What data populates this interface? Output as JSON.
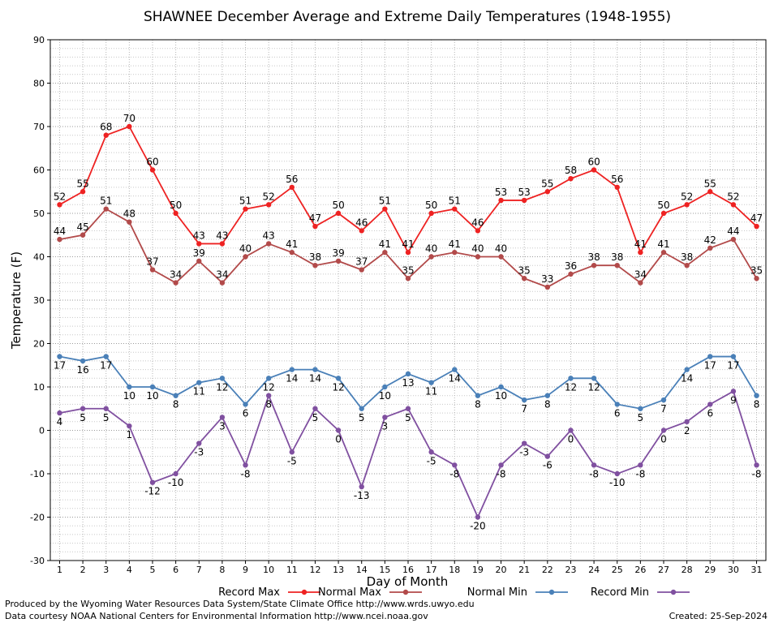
{
  "chart_data": {
    "type": "line",
    "title": "SHAWNEE December Average and Extreme Daily Temperatures (1948-1955)",
    "xlabel": "Day of Month",
    "ylabel": "Temperature (F)",
    "ylim": [
      -30,
      90
    ],
    "xlim": [
      0.6,
      31.4
    ],
    "x": [
      1,
      2,
      3,
      4,
      5,
      6,
      7,
      8,
      9,
      10,
      11,
      12,
      13,
      14,
      15,
      16,
      17,
      18,
      19,
      20,
      21,
      22,
      23,
      24,
      25,
      26,
      27,
      28,
      29,
      30,
      31
    ],
    "yticks": [
      -30,
      -20,
      -10,
      0,
      10,
      20,
      30,
      40,
      50,
      60,
      70,
      80,
      90
    ],
    "grid": true,
    "legend_position": "bottom",
    "series": [
      {
        "name": "Record Max",
        "color": "#ee2222",
        "values": [
          52,
          55,
          68,
          70,
          60,
          50,
          43,
          43,
          51,
          52,
          56,
          47,
          50,
          46,
          51,
          41,
          50,
          51,
          46,
          53,
          53,
          55,
          58,
          60,
          56,
          41,
          50,
          52,
          55,
          52,
          47
        ]
      },
      {
        "name": "Normal Max",
        "color": "#b24a4a",
        "values": [
          44,
          45,
          51,
          48,
          37,
          34,
          39,
          34,
          40,
          43,
          41,
          38,
          39,
          37,
          41,
          35,
          40,
          41,
          40,
          40,
          35,
          33,
          36,
          38,
          38,
          34,
          41,
          38,
          42,
          44,
          35
        ]
      },
      {
        "name": "Normal Min",
        "color": "#4a80b8",
        "values": [
          17,
          16,
          17,
          10,
          10,
          8,
          11,
          12,
          6,
          12,
          14,
          14,
          12,
          5,
          10,
          13,
          11,
          14,
          8,
          10,
          7,
          8,
          12,
          12,
          6,
          5,
          7,
          14,
          17,
          17,
          8
        ]
      },
      {
        "name": "Record Min",
        "color": "#8050a0",
        "values": [
          4,
          5,
          5,
          1,
          -12,
          -10,
          -3,
          3,
          -8,
          8,
          -5,
          5,
          0,
          -13,
          3,
          5,
          -5,
          -8,
          -20,
          -8,
          -3,
          -6,
          0,
          -8,
          -10,
          -8,
          0,
          2,
          6,
          9,
          -8
        ]
      }
    ]
  },
  "footer": {
    "produced_by": "Produced by the Wyoming Water Resources Data System/State Climate Office http://www.wrds.uwyo.edu",
    "data_courtesy": "Data courtesy NOAA National Centers for Environmental Information http://www.ncei.noaa.gov",
    "created": "Created:  25-Sep-2024"
  }
}
